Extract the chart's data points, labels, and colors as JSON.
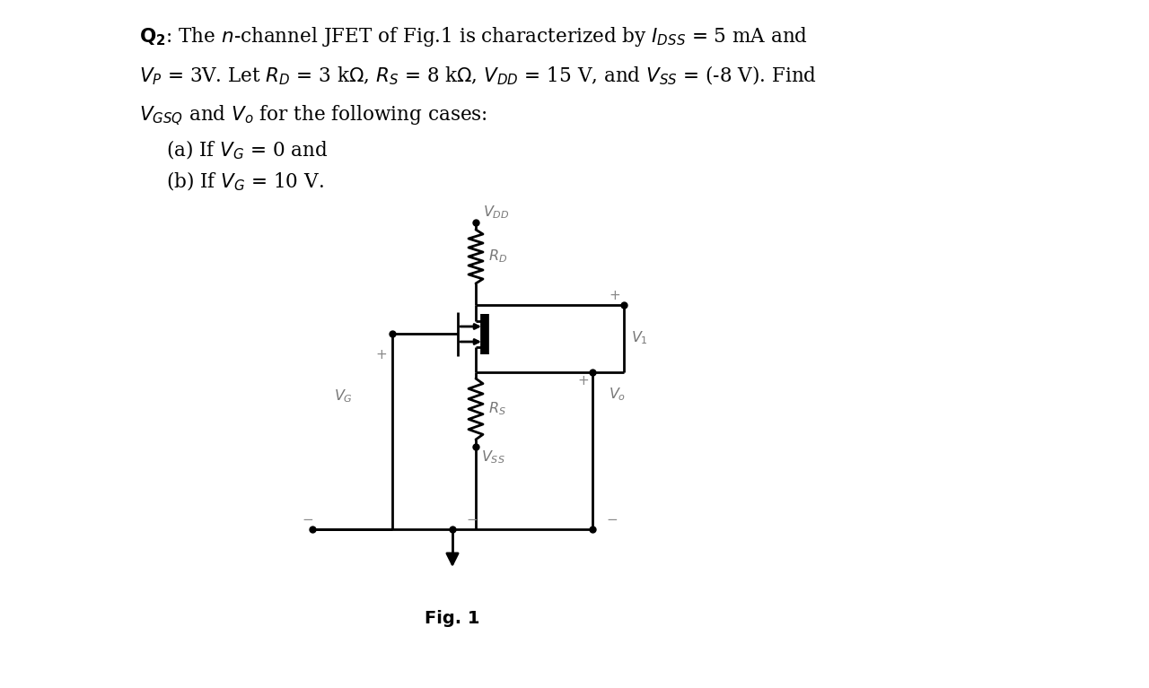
{
  "background_color": "#ffffff",
  "title_text": "characterized by $I_{DSS}$ = 5 mA and",
  "title_bold": "$\\mathbf{Q_2}$: The $n$-channel JFET of Fig.1 is",
  "line2_text": "$V_P$ = 3V. Let $R_D$ = 3 kΩ, $R_S$ = 8 kΩ, $V_{DD}$ = 15 V, and $V_{SS}$ = (-8 V). Find",
  "line3_text": "$V_{GSQ}$ and $V_o$ for the following cases:",
  "line4_text": "(a) If $V_G$ = 0 and",
  "line5_text": "(b) If $V_G$ = 10 V.",
  "fig_caption": "Fig. 1",
  "label_VDD": "$V_{DD}$",
  "label_RD": "$R_D$",
  "label_RS": "$R_S$",
  "label_VSS": "$V_{SS}$",
  "label_VG": "$V_G$",
  "label_V1": "$V_1$",
  "label_Vo": "$V_o$",
  "plus_color": "#888888",
  "minus_color": "#888888",
  "line_color": "#000000",
  "text_color": "#000000"
}
